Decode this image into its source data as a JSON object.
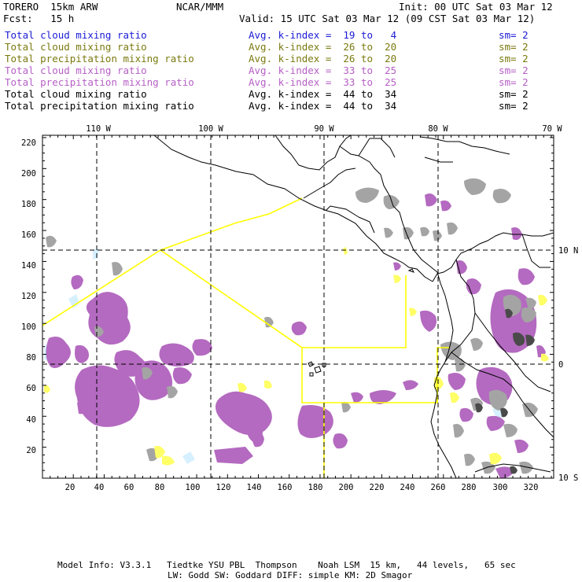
{
  "header": {
    "model": "TORERO  15km ARW",
    "org": "NCAR/MMM",
    "init": "Init: 00 UTC Sat 03 Mar 12",
    "fcst": "Fcst:   15 h",
    "valid": "Valid: 15 UTC Sat 03 Mar 12 (09 CST Sat 03 Mar 12)"
  },
  "legend": [
    {
      "field": "Total cloud mixing ratio",
      "kindex": "Avg. k-index =  19 to   4",
      "sm": "sm= 2",
      "color": "#1a1ad6"
    },
    {
      "field": "Total cloud mixing ratio",
      "kindex": "Avg. k-index =  26 to  20",
      "sm": "sm= 2",
      "color": "#7a7a10"
    },
    {
      "field": "Total precipitation mixing ratio",
      "kindex": "Avg. k-index =  26 to  20",
      "sm": "sm= 2",
      "color": "#7a7a10"
    },
    {
      "field": "Total cloud mixing ratio",
      "kindex": "Avg. k-index =  33 to  25",
      "sm": "sm= 2",
      "color": "#b65fc6"
    },
    {
      "field": "Total precipitation mixing ratio",
      "kindex": "Avg. k-index =  33 to  25",
      "sm": "sm= 2",
      "color": "#b65fc6"
    },
    {
      "field": "Total cloud mixing ratio",
      "kindex": "Avg. k-index =  44 to  34",
      "sm": "sm= 2",
      "color": "#000000"
    },
    {
      "field": "Total precipitation mixing ratio",
      "kindex": "Avg. k-index =  44 to  34",
      "sm": "sm= 2",
      "color": "#000000"
    }
  ],
  "axes": {
    "x_ticks": [
      "20",
      "40",
      "60",
      "80",
      "100",
      "120",
      "140",
      "160",
      "180",
      "200",
      "220",
      "240",
      "260",
      "280",
      "300",
      "320"
    ],
    "y_ticks": [
      "20",
      "40",
      "60",
      "80",
      "100",
      "120",
      "140",
      "160",
      "180",
      "200",
      "220"
    ],
    "lon_labels": [
      "110 W",
      "100 W",
      "90 W",
      "80 W",
      "70 W"
    ],
    "lat_labels": [
      "10 N",
      "0",
      "10 S"
    ]
  },
  "footer": {
    "line1": "Model Info: V3.3.1   Tiedtke YSU PBL  Thompson    Noah LSM  15 km,   44 levels,   65 sec",
    "line2": "LW: Godd SW: Goddard DIFF: simple KM: 2D Smagor"
  },
  "colors": {
    "cloud_violet": "#b46ac0",
    "cloud_gray": "#a0a0a0",
    "cloud_dark": "#505050",
    "yellow": "#ffff66",
    "lightblue": "#d6f0ff",
    "domain_line": "#ffff00"
  }
}
